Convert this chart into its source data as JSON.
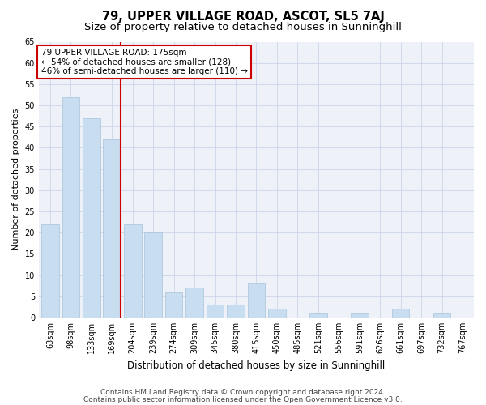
{
  "title": "79, UPPER VILLAGE ROAD, ASCOT, SL5 7AJ",
  "subtitle": "Size of property relative to detached houses in Sunninghill",
  "xlabel": "Distribution of detached houses by size in Sunninghill",
  "ylabel": "Number of detached properties",
  "categories": [
    "63sqm",
    "98sqm",
    "133sqm",
    "169sqm",
    "204sqm",
    "239sqm",
    "274sqm",
    "309sqm",
    "345sqm",
    "380sqm",
    "415sqm",
    "450sqm",
    "485sqm",
    "521sqm",
    "556sqm",
    "591sqm",
    "626sqm",
    "661sqm",
    "697sqm",
    "732sqm",
    "767sqm"
  ],
  "values": [
    22,
    52,
    47,
    42,
    22,
    20,
    6,
    7,
    3,
    3,
    8,
    2,
    0,
    1,
    0,
    1,
    0,
    2,
    0,
    1,
    0
  ],
  "bar_color": "#c9ddf0",
  "bar_edge_color": "#a8c4dc",
  "vline_index": 3,
  "annotation_text": "79 UPPER VILLAGE ROAD: 175sqm\n← 54% of detached houses are smaller (128)\n46% of semi-detached houses are larger (110) →",
  "annotation_box_color": "#ffffff",
  "annotation_box_edge_color": "#cc0000",
  "vline_color": "#cc0000",
  "grid_color": "#ccd6e8",
  "background_color": "#eef2f8",
  "ylim": [
    0,
    65
  ],
  "yticks": [
    0,
    5,
    10,
    15,
    20,
    25,
    30,
    35,
    40,
    45,
    50,
    55,
    60,
    65
  ],
  "footer_line1": "Contains HM Land Registry data © Crown copyright and database right 2024.",
  "footer_line2": "Contains public sector information licensed under the Open Government Licence v3.0.",
  "title_fontsize": 10.5,
  "subtitle_fontsize": 9.5,
  "xlabel_fontsize": 8.5,
  "ylabel_fontsize": 8,
  "tick_fontsize": 7,
  "footer_fontsize": 6.5,
  "annotation_fontsize": 7.5
}
